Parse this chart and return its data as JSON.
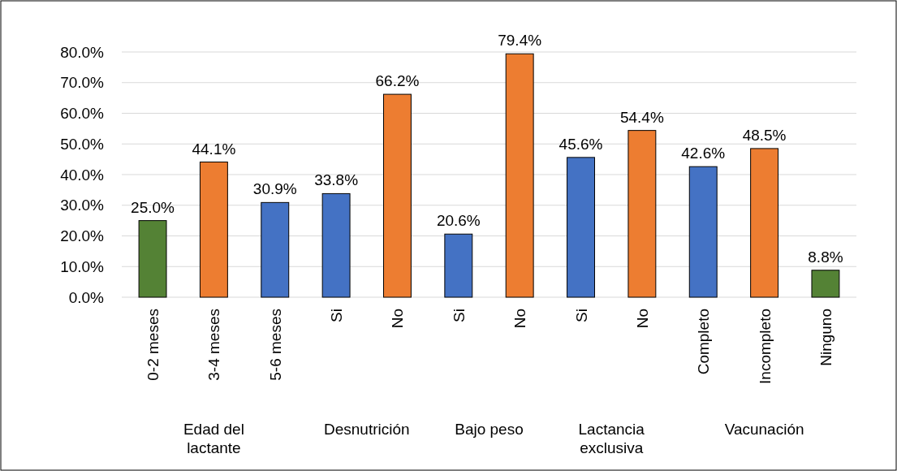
{
  "chart_data": {
    "type": "bar",
    "categories": [
      "0-2 meses",
      "3-4 meses",
      "5-6 meses",
      "Si",
      "No",
      "Si",
      "No",
      "Si",
      "No",
      "Completo",
      "Incompleto",
      "Ninguno"
    ],
    "values": [
      25.0,
      44.1,
      30.9,
      33.8,
      66.2,
      20.6,
      79.4,
      45.6,
      54.4,
      42.6,
      48.5,
      8.8
    ],
    "colors": [
      "#548235",
      "#ed7d31",
      "#4472c4",
      "#4472c4",
      "#ed7d31",
      "#4472c4",
      "#ed7d31",
      "#4472c4",
      "#ed7d31",
      "#4472c4",
      "#ed7d31",
      "#548235"
    ],
    "value_labels": [
      "25.0%",
      "44.1%",
      "30.9%",
      "33.8%",
      "66.2%",
      "20.6%",
      "79.4%",
      "45.6%",
      "54.4%",
      "42.6%",
      "48.5%",
      "8.8%"
    ],
    "ylim": [
      0,
      80
    ],
    "yticks": [
      {
        "value": 0,
        "label": "0.0%"
      },
      {
        "value": 10,
        "label": "10.0%"
      },
      {
        "value": 20,
        "label": "20.0%"
      },
      {
        "value": 30,
        "label": "30.0%"
      },
      {
        "value": 40,
        "label": "40.0%"
      },
      {
        "value": 50,
        "label": "50.0%"
      },
      {
        "value": 60,
        "label": "60.0%"
      },
      {
        "value": 70,
        "label": "70.0%"
      },
      {
        "value": 80,
        "label": "80.0%"
      }
    ],
    "grid": "y",
    "annotations": [
      "Edad del lactante",
      "Desnutrición",
      "Bajo peso",
      "Lactancia exclusiva",
      "Vacunación"
    ]
  }
}
